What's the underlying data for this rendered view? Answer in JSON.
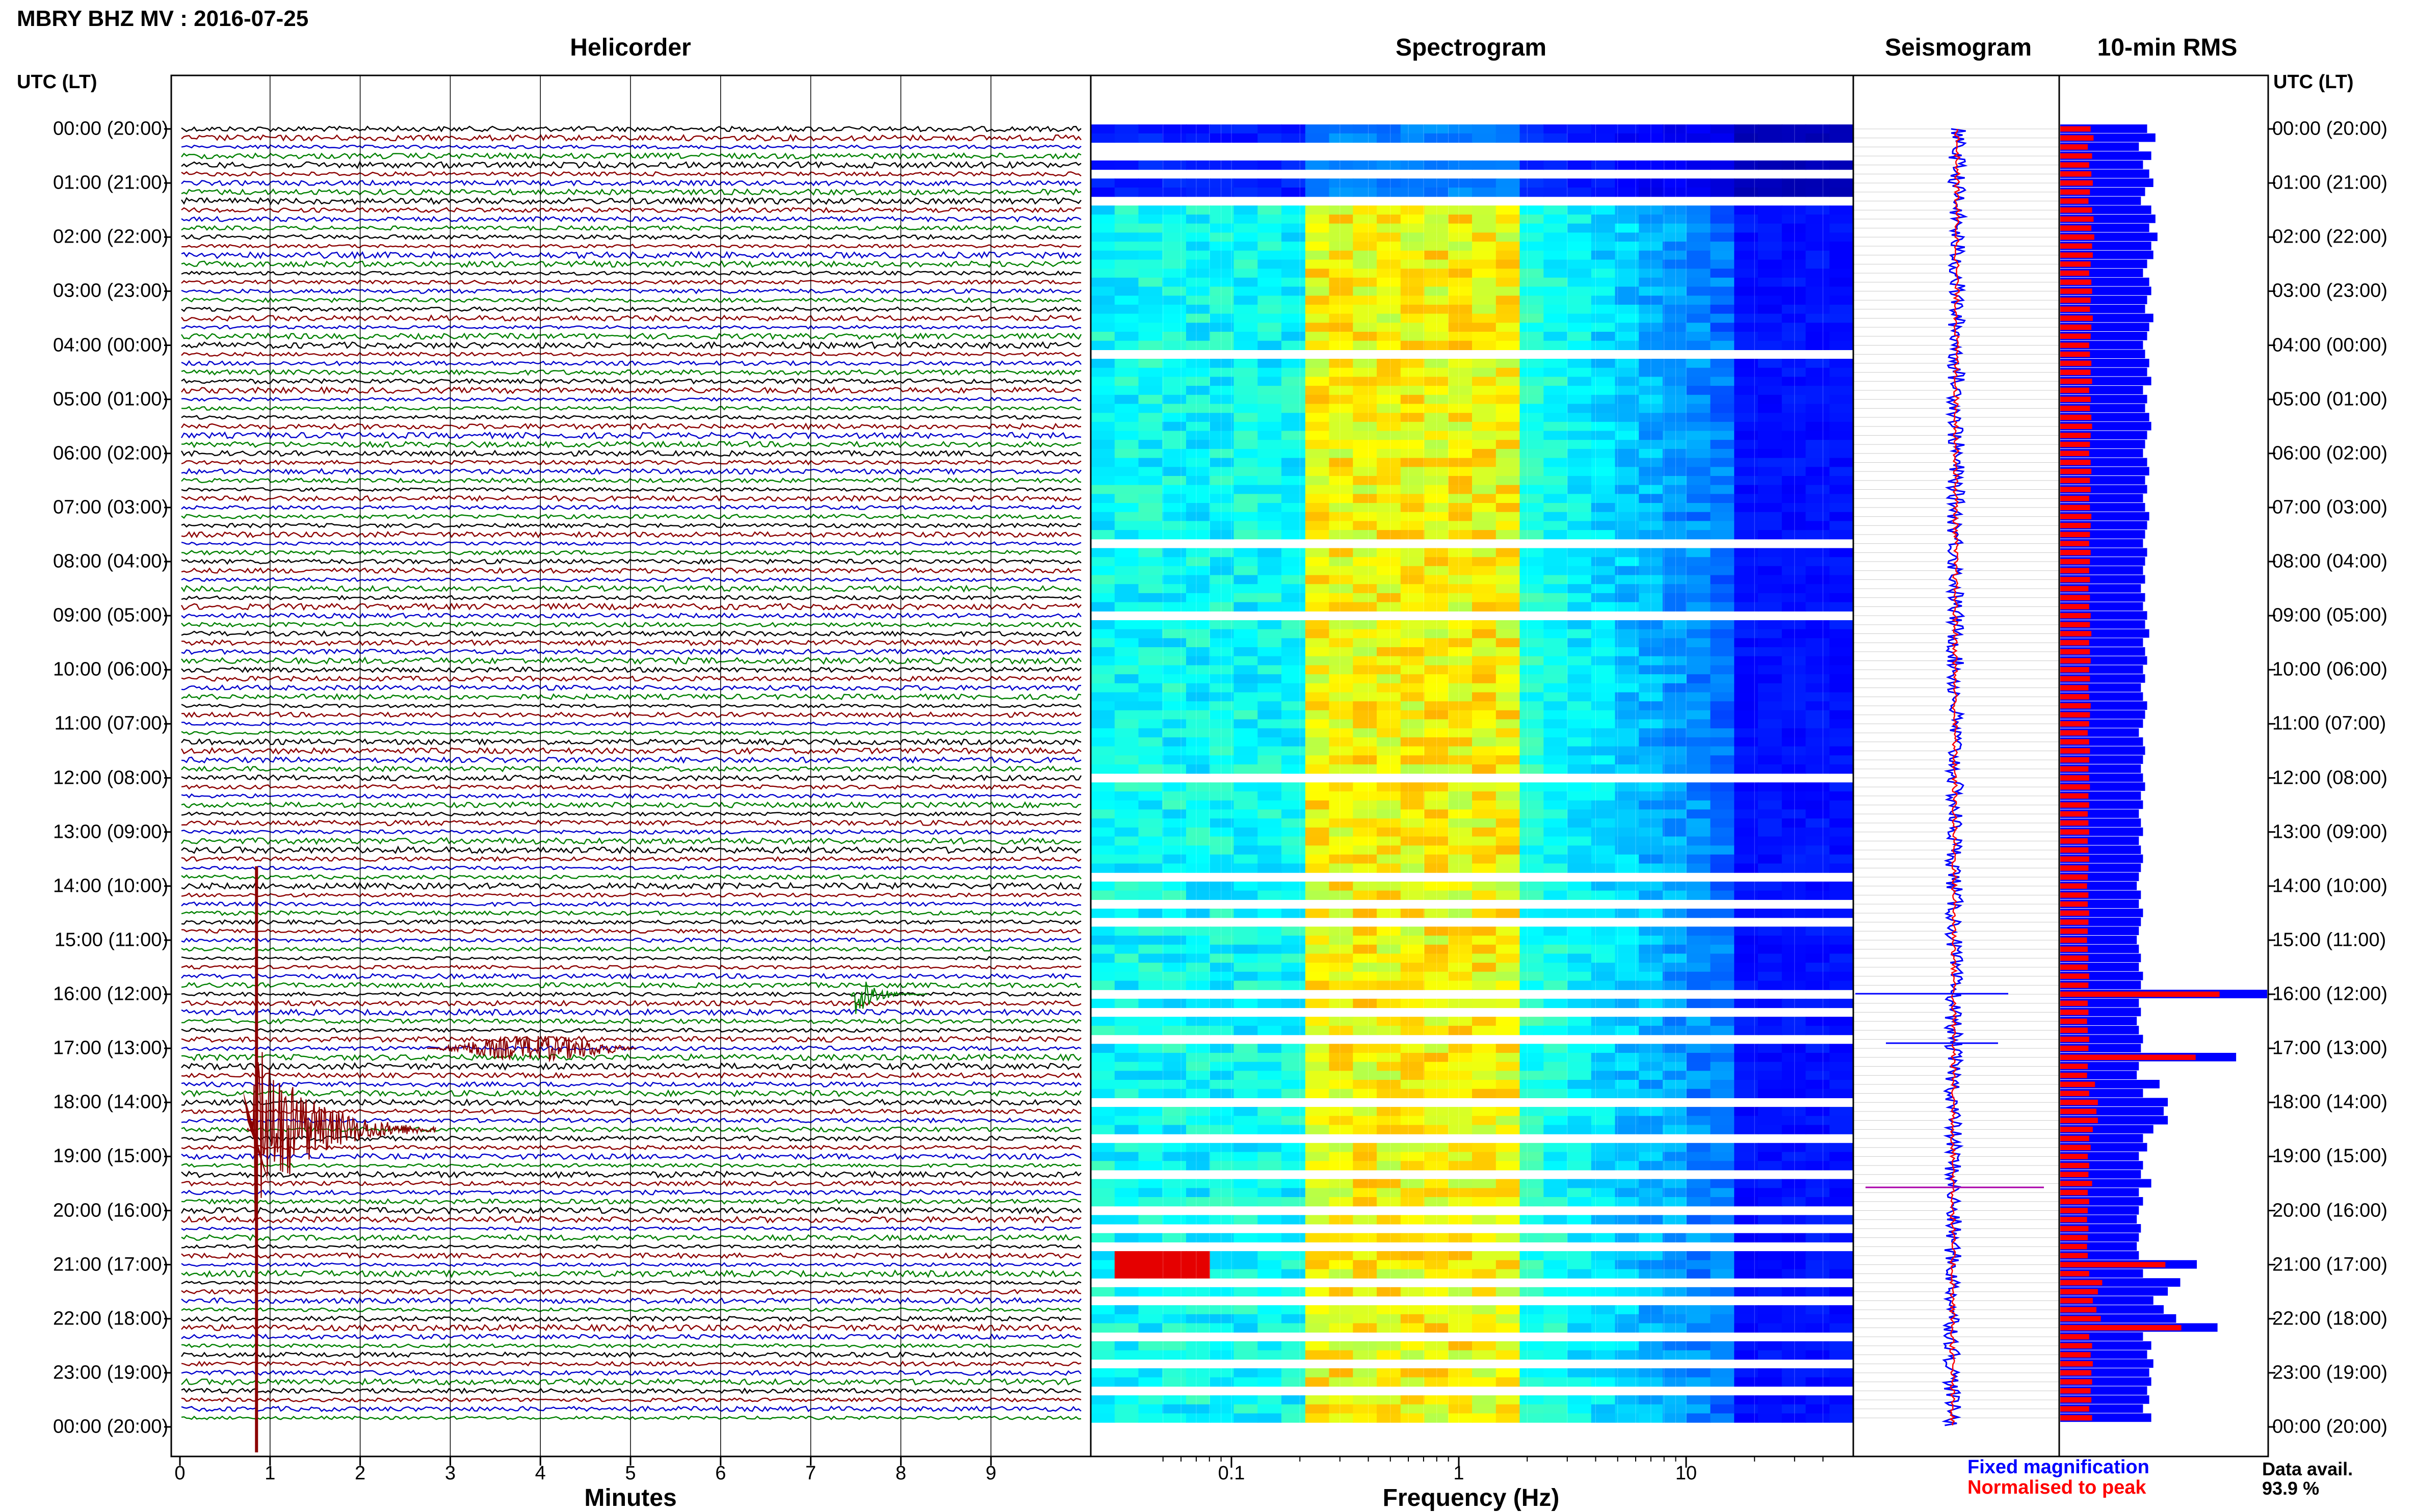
{
  "page_title": "MBRY BHZ MV : 2016-07-25",
  "panels": {
    "helicorder": "Helicorder",
    "spectrogram": "Spectrogram",
    "seismogram": "Seismogram",
    "rms": "10-min RMS"
  },
  "time_axis_label": "UTC (LT)",
  "time_labels": [
    "00:00 (20:00)",
    "01:00 (21:00)",
    "02:00 (22:00)",
    "03:00 (23:00)",
    "04:00 (00:00)",
    "05:00 (01:00)",
    "06:00 (02:00)",
    "07:00 (03:00)",
    "08:00 (04:00)",
    "09:00 (05:00)",
    "10:00 (06:00)",
    "11:00 (07:00)",
    "12:00 (08:00)",
    "13:00 (09:00)",
    "14:00 (10:00)",
    "15:00 (11:00)",
    "16:00 (12:00)",
    "17:00 (13:00)",
    "18:00 (14:00)",
    "19:00 (15:00)",
    "20:00 (16:00)",
    "21:00 (17:00)",
    "22:00 (18:00)",
    "23:00 (19:00)",
    "00:00 (20:00)"
  ],
  "x_labels": {
    "helicorder": "Minutes",
    "spectrogram": "Frequency (Hz)"
  },
  "legend": {
    "fixed": "Fixed magnification",
    "normalised": "Normalised to peak"
  },
  "data_availability": {
    "label": "Data avail.",
    "value": "93.9 %"
  },
  "colors": {
    "trace_cycle": [
      "#000000",
      "#8b0000",
      "#0000cc",
      "#008000"
    ],
    "fixed": "#0000ff",
    "normalised": "#ff0000"
  },
  "chart_data": [
    {
      "type": "line",
      "panel": "helicorder",
      "x_axis": {
        "label": "Minutes",
        "ticks": [
          0,
          1,
          2,
          3,
          4,
          5,
          6,
          7,
          8,
          9
        ],
        "range": [
          0,
          10
        ]
      },
      "rows": 144,
      "row_minutes": 10,
      "events": [
        {
          "time_utc": "16:00",
          "minute": 7.5,
          "type": "local event"
        },
        {
          "time_utc": "17:00",
          "minute": 3.5,
          "type": "tremor burst"
        },
        {
          "time_utc": "18:30",
          "minute": 0.85,
          "type": "large regional earthquake"
        }
      ]
    },
    {
      "type": "heatmap",
      "panel": "spectrogram",
      "x_axis": {
        "label": "Frequency (Hz)",
        "scale": "log",
        "ticks": [
          0.1,
          1,
          10
        ],
        "tick_labels": [
          "0.1",
          "1",
          "10"
        ],
        "range": [
          0.03,
          50
        ]
      },
      "colormap": "jet",
      "rows": 144
    },
    {
      "type": "line",
      "panel": "seismogram",
      "rows": 144
    },
    {
      "type": "bar",
      "panel": "10-min RMS",
      "orientation": "horizontal",
      "series": [
        {
          "name": "Fixed magnification"
        },
        {
          "name": "Normalised to peak"
        }
      ],
      "fixed_values": [
        0.42,
        0.46,
        0.38,
        0.44,
        0.4,
        0.43,
        0.45,
        0.41,
        0.39,
        0.44,
        0.46,
        0.43,
        0.47,
        0.44,
        0.45,
        0.42,
        0.4,
        0.43,
        0.44,
        0.42,
        0.41,
        0.45,
        0.43,
        0.42,
        0.4,
        0.41,
        0.43,
        0.42,
        0.44,
        0.4,
        0.42,
        0.41,
        0.43,
        0.44,
        0.42,
        0.41,
        0.4,
        0.42,
        0.43,
        0.41,
        0.42,
        0.4,
        0.41,
        0.43,
        0.42,
        0.41,
        0.4,
        0.42,
        0.41,
        0.4,
        0.41,
        0.39,
        0.41,
        0.4,
        0.42,
        0.41,
        0.43,
        0.4,
        0.41,
        0.42,
        0.4,
        0.41,
        0.39,
        0.4,
        0.42,
        0.41,
        0.4,
        0.38,
        0.4,
        0.41,
        0.4,
        0.39,
        0.4,
        0.41,
        0.39,
        0.4,
        0.38,
        0.39,
        0.4,
        0.38,
        0.39,
        0.4,
        0.39,
        0.38,
        0.37,
        0.39,
        0.38,
        0.4,
        0.39,
        0.38,
        0.37,
        0.38,
        0.39,
        0.38,
        0.4,
        0.39,
        1.0,
        0.38,
        0.39,
        0.37,
        0.38,
        0.4,
        0.39,
        0.85,
        0.38,
        0.37,
        0.48,
        0.4,
        0.52,
        0.5,
        0.52,
        0.45,
        0.4,
        0.42,
        0.38,
        0.4,
        0.39,
        0.44,
        0.38,
        0.4,
        0.38,
        0.37,
        0.39,
        0.38,
        0.37,
        0.38,
        0.66,
        0.4,
        0.58,
        0.52,
        0.45,
        0.5,
        0.56,
        0.76,
        0.4,
        0.44,
        0.42,
        0.45,
        0.43,
        0.44,
        0.42,
        0.43,
        0.4,
        0.44
      ]
    }
  ]
}
